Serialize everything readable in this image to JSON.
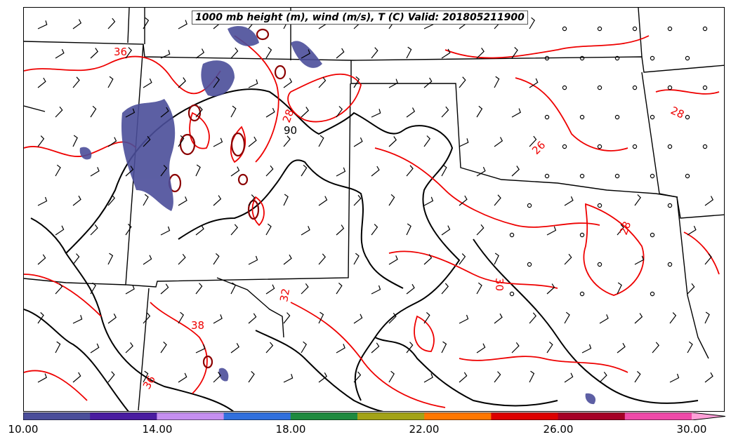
{
  "title": "1000 mb height (m), wind (m/s), T (C) Valid: 201805211900",
  "contour_labels": [
    {
      "text": "36",
      "pos": "upper-left"
    },
    {
      "text": "28",
      "pos": "north-center"
    },
    {
      "text": "90",
      "pos": "north-center-2"
    },
    {
      "text": "28",
      "pos": "east-upper"
    },
    {
      "text": "26",
      "pos": "east-mid"
    },
    {
      "text": "28",
      "pos": "east-lower"
    },
    {
      "text": "30",
      "pos": "center-east"
    },
    {
      "text": "32",
      "pos": "center"
    },
    {
      "text": "38",
      "pos": "south-west"
    },
    {
      "text": "36",
      "pos": "far-south-west"
    }
  ],
  "colorbar": {
    "colors": [
      "#4b4e9a",
      "#4a1ca0",
      "#c58ff0",
      "#3170dd",
      "#1f8a3f",
      "#a3a317",
      "#ff7700",
      "#dd0000",
      "#a50026",
      "#ef4aa8",
      "#ffa0d8"
    ],
    "ticks": [
      "10.00",
      "14.00",
      "18.00",
      "22.00",
      "26.00",
      "30.00"
    ]
  }
}
